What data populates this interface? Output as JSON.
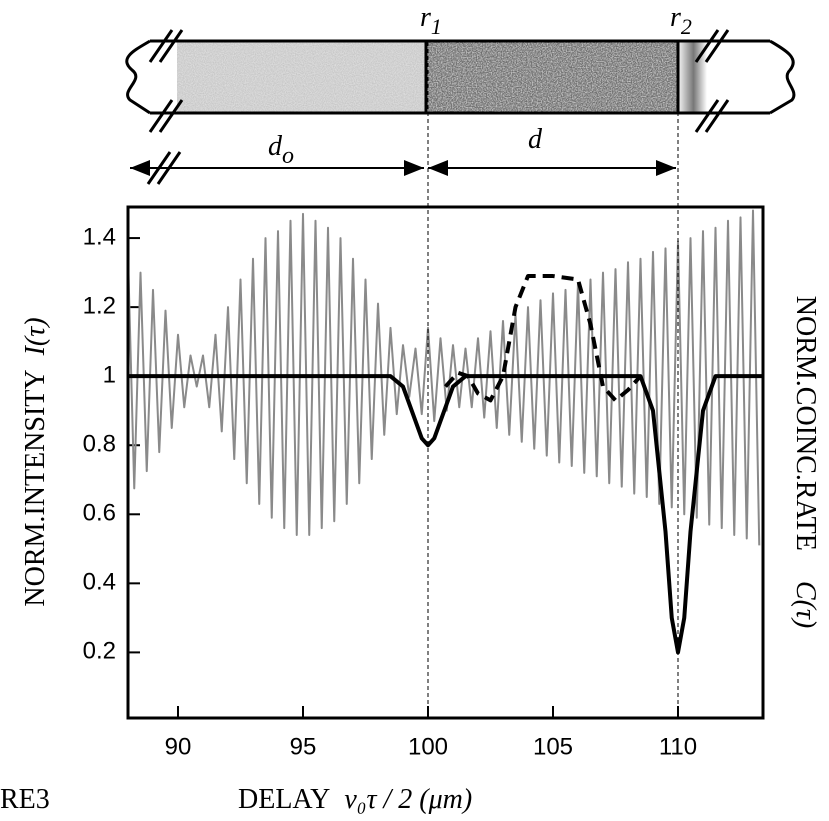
{
  "chart_data": {
    "type": "line",
    "ylabel": "NORM.INTENSITY",
    "ylabel_symbol": "I(τ)",
    "y2label": "NORM.COINC.RATE",
    "y2label_symbol": "C(τ)",
    "xlabel": "DELAY",
    "xlabel_symbol": "v₀τ / 2 (μm)",
    "figure_label": "RE3",
    "xlim": [
      88,
      113.4
    ],
    "ylim": [
      0.01,
      1.49
    ],
    "xticks": [
      90,
      95,
      100,
      105,
      110
    ],
    "yticks": [
      0.2,
      0.4,
      0.6,
      0.8,
      1,
      1.2,
      1.4
    ],
    "markers": [
      {
        "x": 100,
        "label": "r",
        "sub": "1"
      },
      {
        "x": 110,
        "label": "r",
        "sub": "2"
      }
    ],
    "annotations": [
      {
        "text": "d",
        "sub": "o"
      },
      {
        "text": "d"
      }
    ],
    "series": [
      {
        "color": "#8a8a8a",
        "width": 2,
        "dash": false,
        "x": [
          88,
          88.25,
          88.5,
          88.75,
          89,
          89.25,
          89.5,
          89.75,
          90,
          90.25,
          90.5,
          90.75,
          91,
          91.25,
          91.5,
          91.75,
          92,
          92.25,
          92.5,
          92.75,
          93,
          93.25,
          93.5,
          93.75,
          94,
          94.25,
          94.5,
          94.75,
          95,
          95.25,
          95.5,
          95.75,
          96,
          96.25,
          96.5,
          96.75,
          97,
          97.25,
          97.5,
          97.75,
          98,
          98.25,
          98.5,
          98.75,
          99,
          99.25,
          99.5,
          99.75,
          100,
          100.25,
          100.5,
          100.75,
          101,
          101.25,
          101.5,
          101.75,
          102,
          102.25,
          102.5,
          102.75,
          103,
          103.25,
          103.5,
          103.75,
          104,
          104.25,
          104.5,
          104.75,
          105,
          105.25,
          105.5,
          105.75,
          106,
          106.25,
          106.5,
          106.75,
          107,
          107.25,
          107.5,
          107.75,
          108,
          108.25,
          108.5,
          108.75,
          109,
          109.25,
          109.5,
          109.75,
          110,
          110.25,
          110.5,
          110.75,
          111,
          111.25,
          111.5,
          111.75,
          112,
          112.25,
          112.5,
          112.75,
          113,
          113.25
        ],
        "values": [
          1.35,
          0.675,
          1.3,
          0.725,
          1.25,
          0.78,
          1.19,
          0.85,
          1.12,
          0.91,
          1.06,
          0.97,
          1.06,
          0.91,
          1.12,
          0.84,
          1.2,
          0.76,
          1.28,
          0.69,
          1.34,
          0.63,
          1.4,
          0.59,
          1.42,
          0.56,
          1.45,
          0.54,
          1.47,
          0.54,
          1.45,
          0.56,
          1.43,
          0.58,
          1.4,
          0.63,
          1.34,
          0.69,
          1.28,
          0.76,
          1.21,
          0.83,
          1.14,
          0.89,
          1.09,
          0.94,
          1.08,
          0.89,
          1.14,
          0.87,
          1.11,
          0.9,
          1.09,
          0.91,
          1.08,
          0.91,
          1.11,
          0.88,
          1.13,
          0.85,
          1.16,
          0.83,
          1.18,
          0.81,
          1.2,
          0.79,
          1.22,
          0.77,
          1.24,
          0.75,
          1.25,
          0.74,
          1.27,
          0.72,
          1.28,
          0.71,
          1.3,
          0.69,
          1.31,
          0.68,
          1.33,
          0.66,
          1.34,
          0.65,
          1.36,
          0.63,
          1.37,
          0.62,
          1.39,
          0.6,
          1.4,
          0.59,
          1.42,
          0.57,
          1.43,
          0.56,
          1.45,
          0.54,
          1.46,
          0.53,
          1.48,
          0.51
        ]
      },
      {
        "color": "#000000",
        "width": 4,
        "dash": false,
        "x": [
          88,
          98.5,
          99,
          99.5,
          99.75,
          100,
          100.25,
          100.5,
          101,
          101.5,
          108.5,
          109,
          109.5,
          109.75,
          110,
          110.25,
          110.5,
          111,
          111.5,
          113.4
        ],
        "values": [
          1,
          1,
          0.97,
          0.87,
          0.82,
          0.8,
          0.82,
          0.87,
          0.97,
          1,
          1,
          0.9,
          0.55,
          0.3,
          0.2,
          0.3,
          0.55,
          0.9,
          1,
          1
        ]
      },
      {
        "color": "#000000",
        "width": 4,
        "dash": true,
        "x": [
          100.7,
          101.2,
          101.6,
          102,
          102.5,
          103,
          103.5,
          104,
          105,
          106,
          106.5,
          107,
          107.5,
          108,
          108.5
        ],
        "values": [
          0.97,
          1.01,
          1,
          0.95,
          0.93,
          1,
          1.2,
          1.29,
          1.29,
          1.28,
          1.15,
          0.97,
          0.93,
          0.96,
          1
        ]
      }
    ]
  }
}
